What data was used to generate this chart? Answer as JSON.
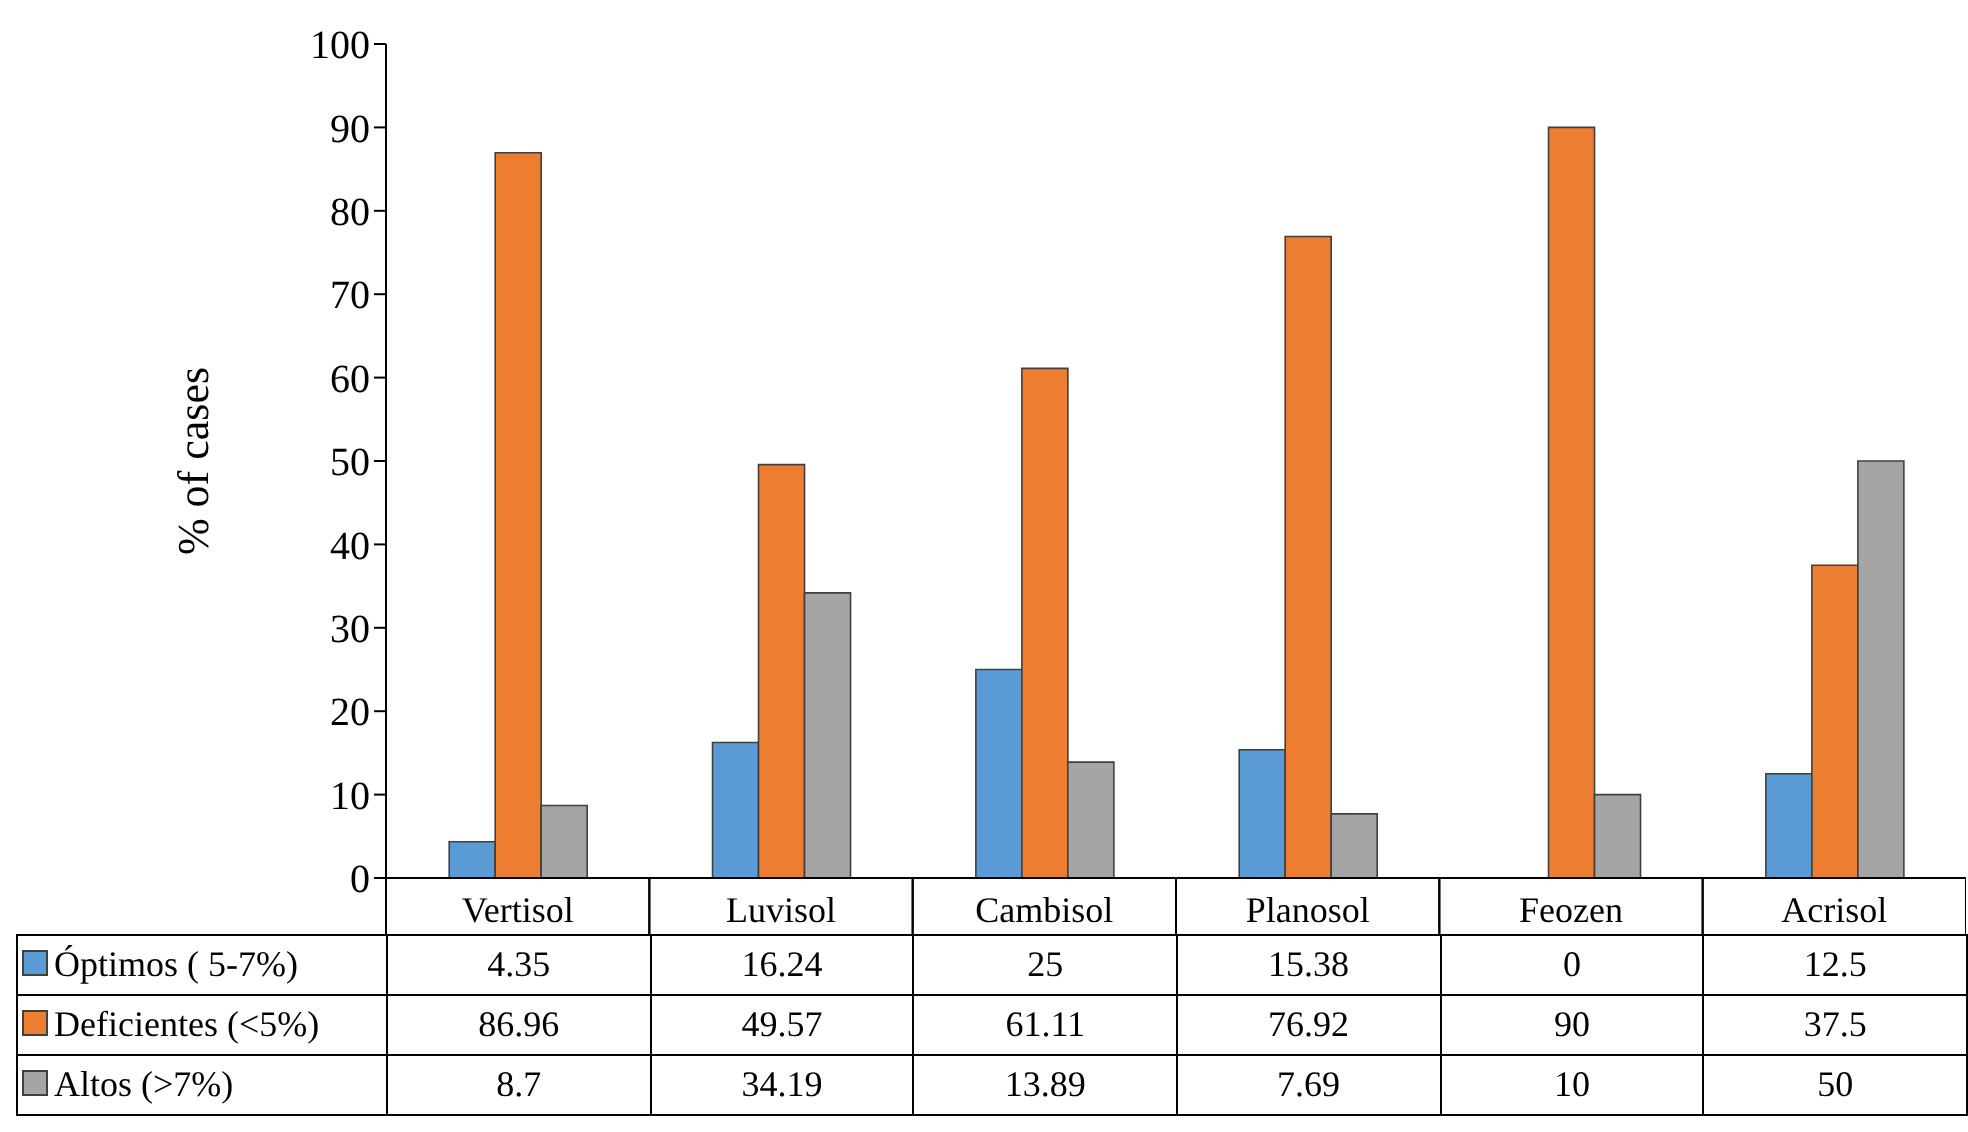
{
  "chart_data": {
    "type": "bar",
    "ylabel": "% of cases",
    "categories": [
      "Vertisol",
      "Luvisol",
      "Cambisol",
      "Planosol",
      "Feozen",
      "Acrisol"
    ],
    "series": [
      {
        "name": "Óptimos ( 5-7%)",
        "color": "#5b9bd5",
        "values": [
          4.35,
          16.24,
          25,
          15.38,
          0,
          12.5
        ]
      },
      {
        "name": "Deficientes (<5%)",
        "color": "#ed7d31",
        "values": [
          86.96,
          49.57,
          61.11,
          76.92,
          90,
          37.5
        ]
      },
      {
        "name": "Altos (>7%)",
        "color": "#a5a5a5",
        "values": [
          8.7,
          34.19,
          13.89,
          7.69,
          10,
          50
        ]
      }
    ],
    "ylim": [
      0,
      100
    ],
    "yticks": [
      0,
      10,
      20,
      30,
      40,
      50,
      60,
      70,
      80,
      90,
      100
    ],
    "data_labels": true,
    "legend": "bottom"
  }
}
